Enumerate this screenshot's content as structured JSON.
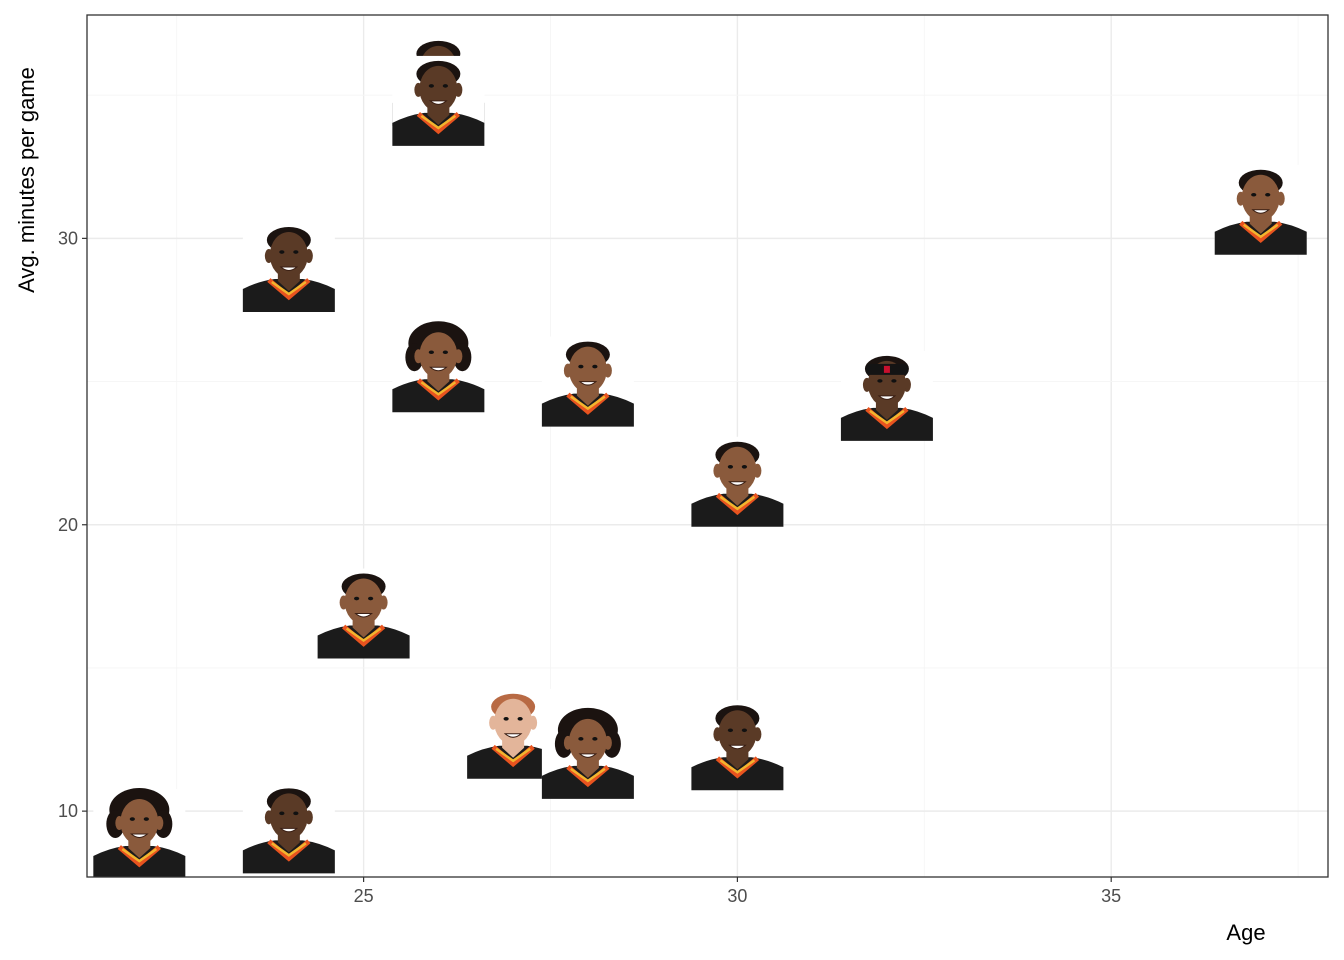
{
  "chart_data": {
    "type": "scatter",
    "title": "",
    "xlabel": "Age",
    "ylabel": "Avg. minutes per game",
    "xlim": [
      21.3,
      37.9
    ],
    "ylim": [
      7.7,
      37.8
    ],
    "x_ticks": [
      25,
      30,
      35
    ],
    "y_ticks": [
      10,
      20,
      30
    ],
    "grid": true,
    "legend": "none",
    "marker": "player headshot image",
    "colors": {
      "skin_dark": "#5a3a26",
      "skin_medium": "#8a5a3c",
      "skin_light": "#e3b59a",
      "hair_dark": "#1b1310",
      "hair_red": "#b86a44",
      "jersey": "#1b1b1b",
      "collar_orange": "#e8531f",
      "collar_yellow": "#f2b52e",
      "grid_major": "#ebebeb",
      "grid_minor": "#f5f5f5",
      "panel_border": "#333333"
    },
    "points": [
      {
        "x": 26,
        "y": 35.5,
        "skin": "skin_dark",
        "hair": "hair_dark",
        "hairstyle": "short"
      },
      {
        "x": 26,
        "y": 34.8,
        "skin": "skin_dark",
        "hair": "hair_dark",
        "hairstyle": "short"
      },
      {
        "x": 37,
        "y": 31.0,
        "skin": "skin_medium",
        "hair": "hair_dark",
        "hairstyle": "short"
      },
      {
        "x": 24,
        "y": 29.0,
        "skin": "skin_dark",
        "hair": "hair_dark",
        "hairstyle": "short"
      },
      {
        "x": 26,
        "y": 25.5,
        "skin": "skin_medium",
        "hair": "hair_dark",
        "hairstyle": "curly"
      },
      {
        "x": 28,
        "y": 25.0,
        "skin": "skin_medium",
        "hair": "hair_dark",
        "hairstyle": "short"
      },
      {
        "x": 32,
        "y": 24.5,
        "skin": "skin_dark",
        "hair": "hair_dark",
        "hairstyle": "headband"
      },
      {
        "x": 30,
        "y": 21.5,
        "skin": "skin_medium",
        "hair": "hair_dark",
        "hairstyle": "short"
      },
      {
        "x": 25,
        "y": 16.9,
        "skin": "skin_medium",
        "hair": "hair_dark",
        "hairstyle": "short"
      },
      {
        "x": 27,
        "y": 12.7,
        "skin": "skin_light",
        "hair": "hair_red",
        "hairstyle": "short"
      },
      {
        "x": 28,
        "y": 12.0,
        "skin": "skin_medium",
        "hair": "hair_dark",
        "hairstyle": "curly"
      },
      {
        "x": 30,
        "y": 12.3,
        "skin": "skin_dark",
        "hair": "hair_dark",
        "hairstyle": "short"
      },
      {
        "x": 22,
        "y": 9.2,
        "skin": "skin_medium",
        "hair": "hair_dark",
        "hairstyle": "locs"
      },
      {
        "x": 24,
        "y": 9.4,
        "skin": "skin_dark",
        "hair": "hair_dark",
        "hairstyle": "short"
      }
    ]
  }
}
